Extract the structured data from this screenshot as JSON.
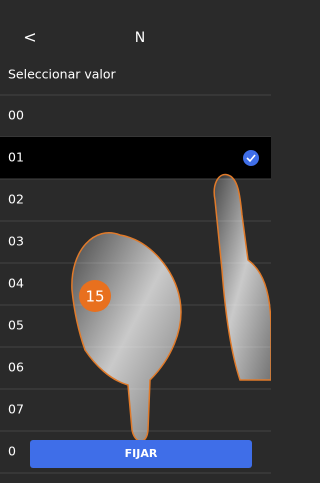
{
  "header": {
    "back": "<",
    "title": "N"
  },
  "subtitle": "Seleccionar valor",
  "list": {
    "items": [
      "00",
      "01",
      "02",
      "03",
      "04",
      "05",
      "06",
      "07",
      "0"
    ],
    "selected": 1
  },
  "button": "FIJAR",
  "badge": "15"
}
